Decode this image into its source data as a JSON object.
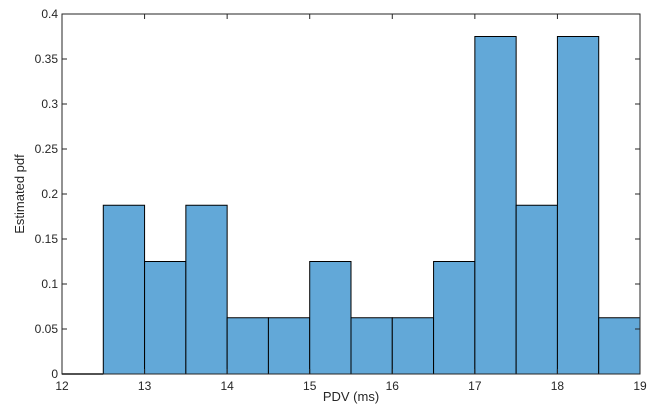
{
  "chart_data": {
    "type": "bar",
    "title": "",
    "xlabel": "PDV (ms)",
    "ylabel": "Estimated pdf",
    "xlim": [
      12,
      19
    ],
    "ylim": [
      0,
      0.4
    ],
    "x_ticks": [
      12,
      13,
      14,
      15,
      16,
      17,
      18,
      19
    ],
    "y_ticks": [
      0,
      0.05,
      0.1,
      0.15,
      0.2,
      0.25,
      0.3,
      0.35,
      0.4
    ],
    "x_tick_labels": [
      "12",
      "13",
      "14",
      "15",
      "16",
      "17",
      "18",
      "19"
    ],
    "y_tick_labels": [
      "0",
      "0.05",
      "0.1",
      "0.15",
      "0.2",
      "0.25",
      "0.3",
      "0.35",
      "0.4"
    ],
    "bin_edges": [
      12,
      12.5,
      13,
      13.5,
      14,
      14.5,
      15,
      15.5,
      16,
      16.5,
      17,
      17.5,
      18,
      18.5,
      19
    ],
    "values": [
      0,
      0.1875,
      0.125,
      0.1875,
      0.0625,
      0.0625,
      0.125,
      0.0625,
      0.0625,
      0.125,
      0.375,
      0.1875,
      0.375,
      0.0625
    ],
    "bar_color": "#62a8d8",
    "edge_color": "#000000",
    "grid": false
  }
}
